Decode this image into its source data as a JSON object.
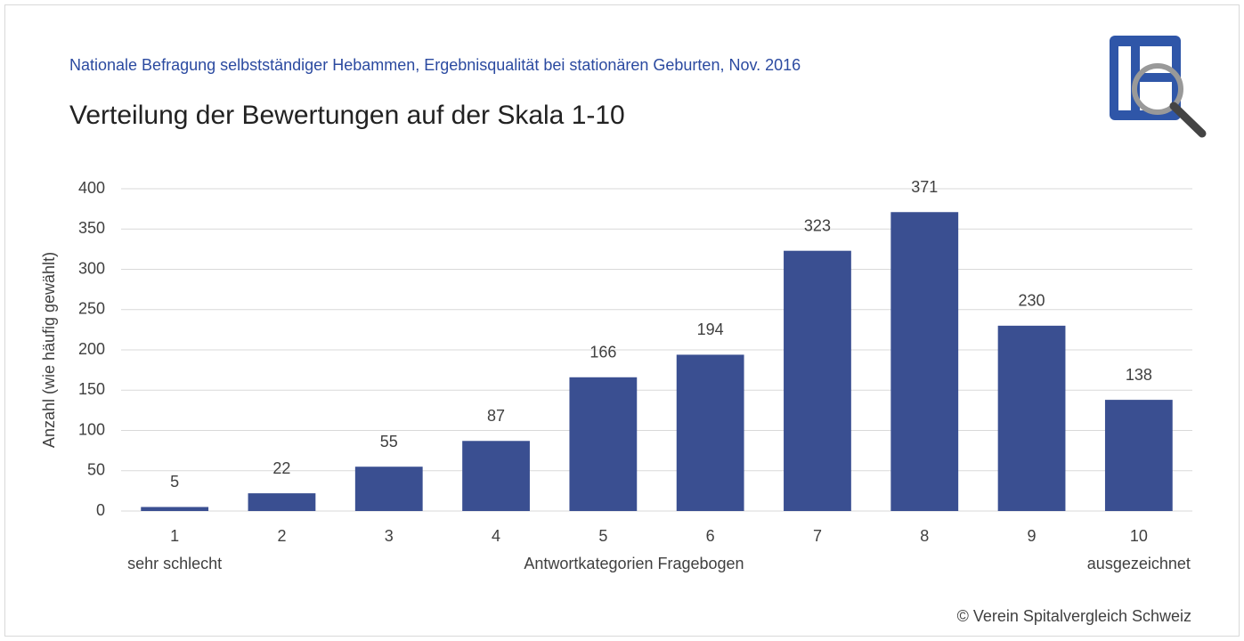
{
  "chart_data": {
    "type": "bar",
    "supertitle": "Nationale Befragung selbstständiger Hebammen, Ergebnisqualität bei stationären Geburten, Nov. 2016",
    "title": "Verteilung der Bewertungen auf der Skala 1-10",
    "y_label": "Anzahl (wie häufig gewählt)",
    "x_label": "Antwortkategorien Fragebogen",
    "x_low_label": "sehr schlecht",
    "x_high_label": "ausgezeichnet",
    "footer": "© Verein Spitalvergleich Schweiz",
    "categories": [
      "1",
      "2",
      "3",
      "4",
      "5",
      "6",
      "7",
      "8",
      "9",
      "10"
    ],
    "values": [
      5,
      22,
      55,
      87,
      166,
      194,
      323,
      371,
      230,
      138
    ],
    "color": "#3a4f91",
    "ylim": [
      0,
      400
    ],
    "yticks": [
      0,
      50,
      100,
      150,
      200,
      250,
      300,
      350,
      400
    ],
    "grid": true
  }
}
